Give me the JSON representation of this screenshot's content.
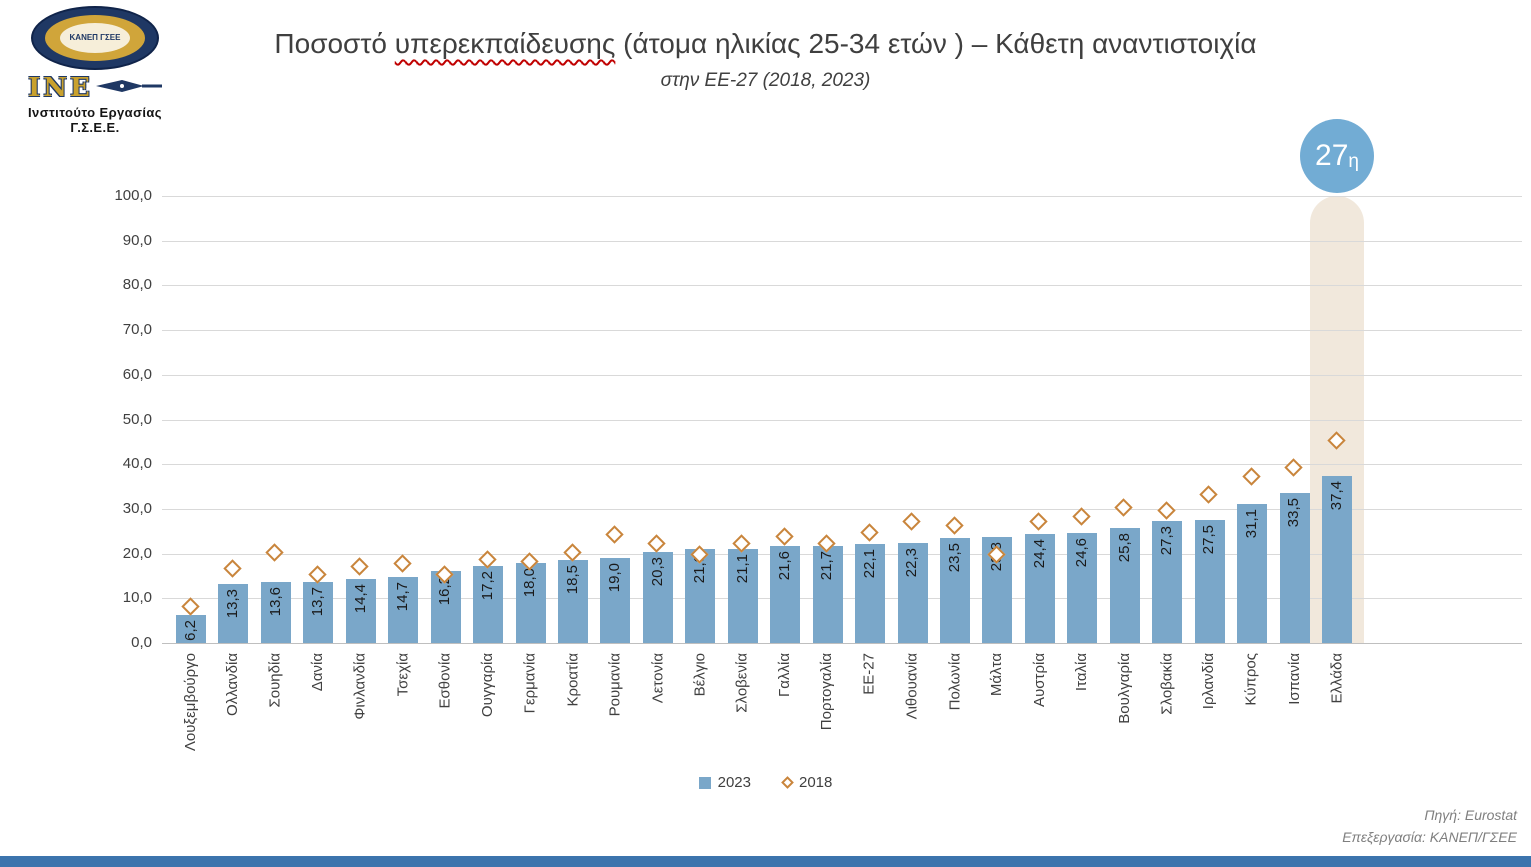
{
  "logo": {
    "circle_text": "ΚΑΝΕΠ ΓΣΕΕ",
    "ine_text": "ΙΝΕ",
    "institute_name": "Ινστιτούτο Εργασίας Γ.Σ.Ε.Ε."
  },
  "title": {
    "pre": "Ποσοστό ",
    "underlined_word": "υπερεκπαίδευσης",
    "post": " (άτομα ηλικίας 25-34 ετών ) – Κάθετη αναντιστοιχία"
  },
  "subtitle": "στην ΕΕ-27 (2018, 2023)",
  "rank_badge": {
    "number": "27",
    "suffix": "η"
  },
  "legend": {
    "items": [
      {
        "label": "2023",
        "marker": "square"
      },
      {
        "label": "2018",
        "marker": "diamond"
      }
    ]
  },
  "source": {
    "line1": "Πηγή: Eurostat",
    "line2": "Επεξεργασία: ΚΑΝΕΠ/ΓΣΕΕ"
  },
  "colors": {
    "bar": "#7aa7c9",
    "diamond_outline": "#c9853c",
    "highlight_band": "#e8d8c4",
    "badge_circle": "#72acd4",
    "footer_strip": "#3c74ad",
    "gridline": "#d9d9d9",
    "axis_line": "#bfbfbf",
    "axis_text": "#404040",
    "title_text": "#3f3f3f"
  },
  "chart_data": {
    "type": "bar",
    "title": "Ποσοστό υπερεκπαίδευσης (άτομα ηλικίας 25-34 ετών ) – Κάθετη αναντιστοιχία",
    "subtitle": "στην ΕΕ-27 (2018, 2023)",
    "xlabel": "",
    "ylabel": "",
    "ylim": [
      0,
      100
    ],
    "ytick_step": 10,
    "ytick_labels": [
      "0,0",
      "10,0",
      "20,0",
      "30,0",
      "40,0",
      "50,0",
      "60,0",
      "70,0",
      "80,0",
      "90,0",
      "100,0"
    ],
    "grid": true,
    "legend_position": "bottom",
    "categories": [
      "Λουξεμβούργο",
      "Ολλανδία",
      "Σουηδία",
      "Δανία",
      "Φινλανδία",
      "Τσεχία",
      "Εσθονία",
      "Ουγγαρία",
      "Γερμανία",
      "Κροατία",
      "Ρουμανία",
      "Λετονία",
      "Βέλγιο",
      "Σλοβενία",
      "Γαλλία",
      "Πορτογαλία",
      "ΕΕ-27",
      "Λιθουανία",
      "Πολωνία",
      "Μάλτα",
      "Αυστρία",
      "Ιταλία",
      "Βουλγαρία",
      "Σλοβακία",
      "Ιρλανδία",
      "Κύπρος",
      "Ισπανία",
      "Ελλάδα"
    ],
    "series": [
      {
        "name": "2023",
        "type": "bar",
        "data_labels_shown": true,
        "values": [
          6.2,
          13.3,
          13.6,
          13.7,
          14.4,
          14.7,
          16.2,
          17.2,
          18.0,
          18.5,
          19.0,
          20.3,
          21.0,
          21.1,
          21.6,
          21.7,
          22.1,
          22.3,
          23.5,
          23.8,
          24.4,
          24.6,
          25.8,
          27.3,
          27.5,
          31.1,
          33.5,
          37.4
        ]
      },
      {
        "name": "2018",
        "type": "scatter",
        "marker": "open-diamond",
        "data_labels_shown": false,
        "values": [
          8.0,
          16.5,
          20.0,
          15.0,
          17.0,
          17.5,
          15.0,
          18.5,
          18.0,
          20.0,
          24.0,
          22.0,
          19.5,
          22.0,
          23.5,
          22.0,
          24.5,
          27.0,
          26.0,
          19.5,
          27.0,
          28.0,
          30.0,
          29.5,
          33.0,
          37.0,
          39.0,
          45.0
        ]
      }
    ],
    "highlight": {
      "category": "Ελλάδα",
      "rank_label": "27η"
    }
  }
}
